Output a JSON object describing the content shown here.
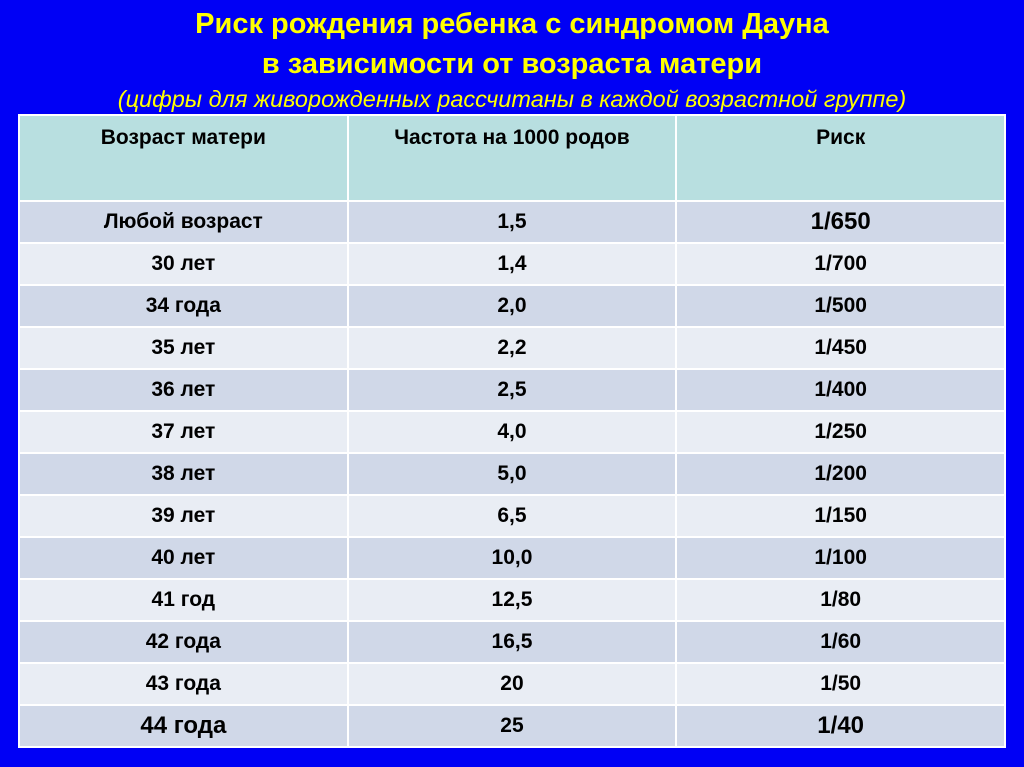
{
  "title": {
    "line1": "Риск рождения ребенка с синдромом Дауна",
    "line2": "в зависимости от возраста матери",
    "line3": "(цифры для живорожденных рассчитаны в каждой возрастной группе)"
  },
  "table": {
    "headers": [
      "Возраст матери",
      "Частота на 1000 родов",
      "Риск"
    ],
    "rows": [
      [
        "Любой возраст",
        "1,5",
        "1/650"
      ],
      [
        "30 лет",
        "1,4",
        "1/700"
      ],
      [
        "34 года",
        "2,0",
        "1/500"
      ],
      [
        "35 лет",
        "2,2",
        "1/450"
      ],
      [
        "36 лет",
        "2,5",
        "1/400"
      ],
      [
        "37 лет",
        "4,0",
        "1/250"
      ],
      [
        "38 лет",
        "5,0",
        "1/200"
      ],
      [
        "39 лет",
        "6,5",
        "1/150"
      ],
      [
        "40 лет",
        "10,0",
        "1/100"
      ],
      [
        "41 год",
        "12,5",
        "1/80"
      ],
      [
        "42 года",
        "16,5",
        "1/60"
      ],
      [
        "43 года",
        "20",
        "1/50"
      ],
      [
        "44 года",
        "25",
        "1/40"
      ]
    ]
  },
  "colors": {
    "background": "#0000f5",
    "title": "#ffff00",
    "header": "#b8dfe0",
    "row_dark": "#d0d8e8",
    "row_light": "#e9edf4"
  }
}
